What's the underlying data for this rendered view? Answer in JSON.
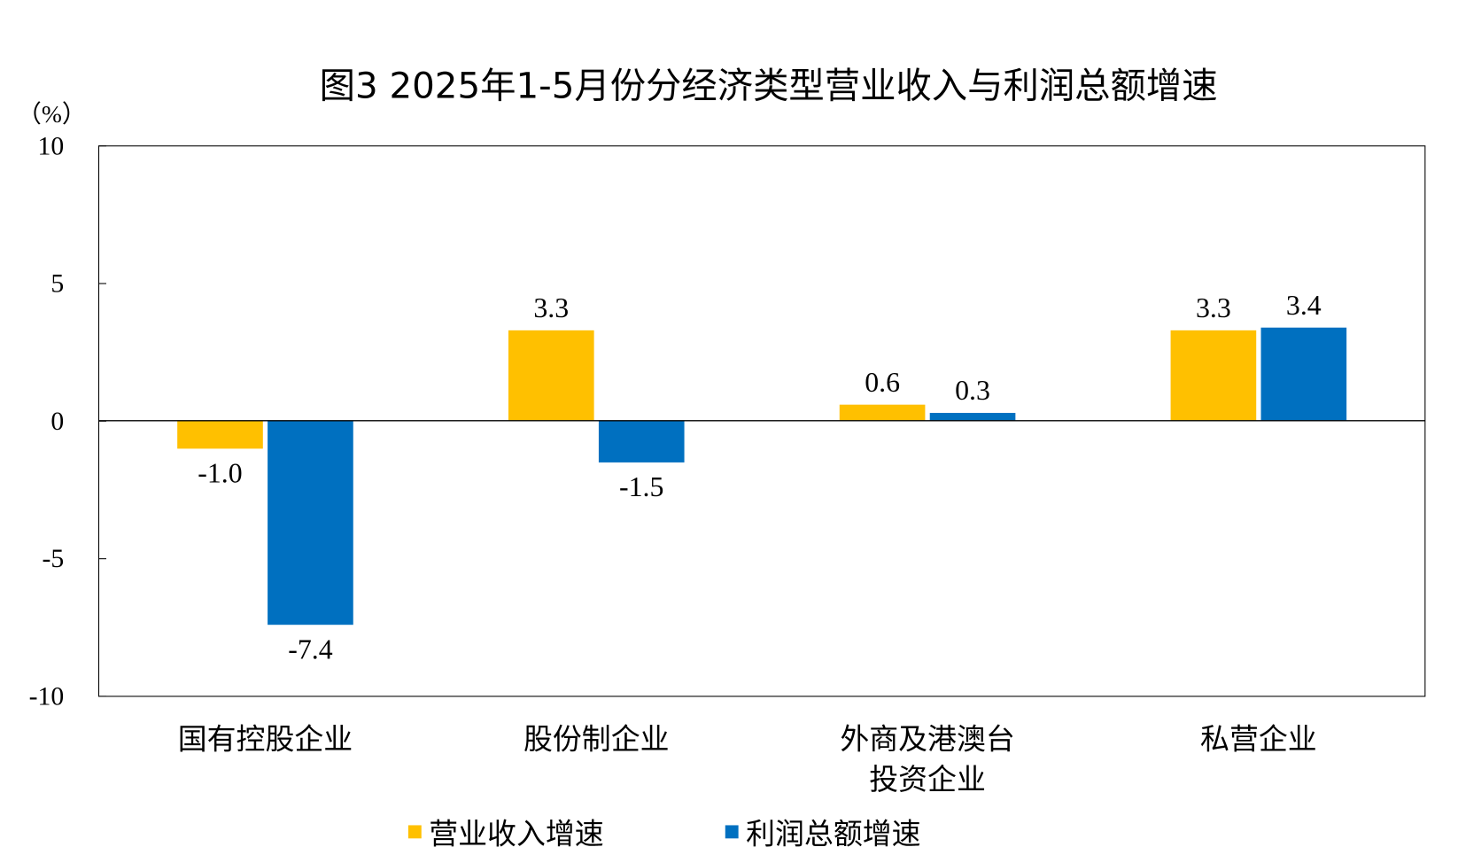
{
  "chart_data": {
    "type": "bar",
    "title": "图3 2025年1-5月份分经济类型营业收入与利润总额增速",
    "ylabel": "（%）",
    "xlabel": "",
    "ylim": [
      -10,
      10
    ],
    "yticks": [
      "10",
      "5",
      "0",
      "-5",
      "-10"
    ],
    "ytick_values": [
      10,
      5,
      0,
      -5,
      -10
    ],
    "categories": [
      [
        "国有控股企业"
      ],
      [
        "股份制企业"
      ],
      [
        "外商及港澳台",
        "投资企业"
      ],
      [
        "私营企业"
      ]
    ],
    "series": [
      {
        "name": "营业收入增速",
        "color": "#FFC000",
        "values": [
          -1.0,
          3.3,
          0.6,
          3.3
        ],
        "labels": [
          "-1.0",
          "3.3",
          "0.6",
          "3.3"
        ]
      },
      {
        "name": "利润总额增速",
        "color": "#0070C0",
        "values": [
          -7.4,
          -1.5,
          0.3,
          3.4
        ],
        "labels": [
          "-7.4",
          "-1.5",
          "0.3",
          "3.4"
        ]
      }
    ],
    "grid": false,
    "legend": "bottom"
  }
}
